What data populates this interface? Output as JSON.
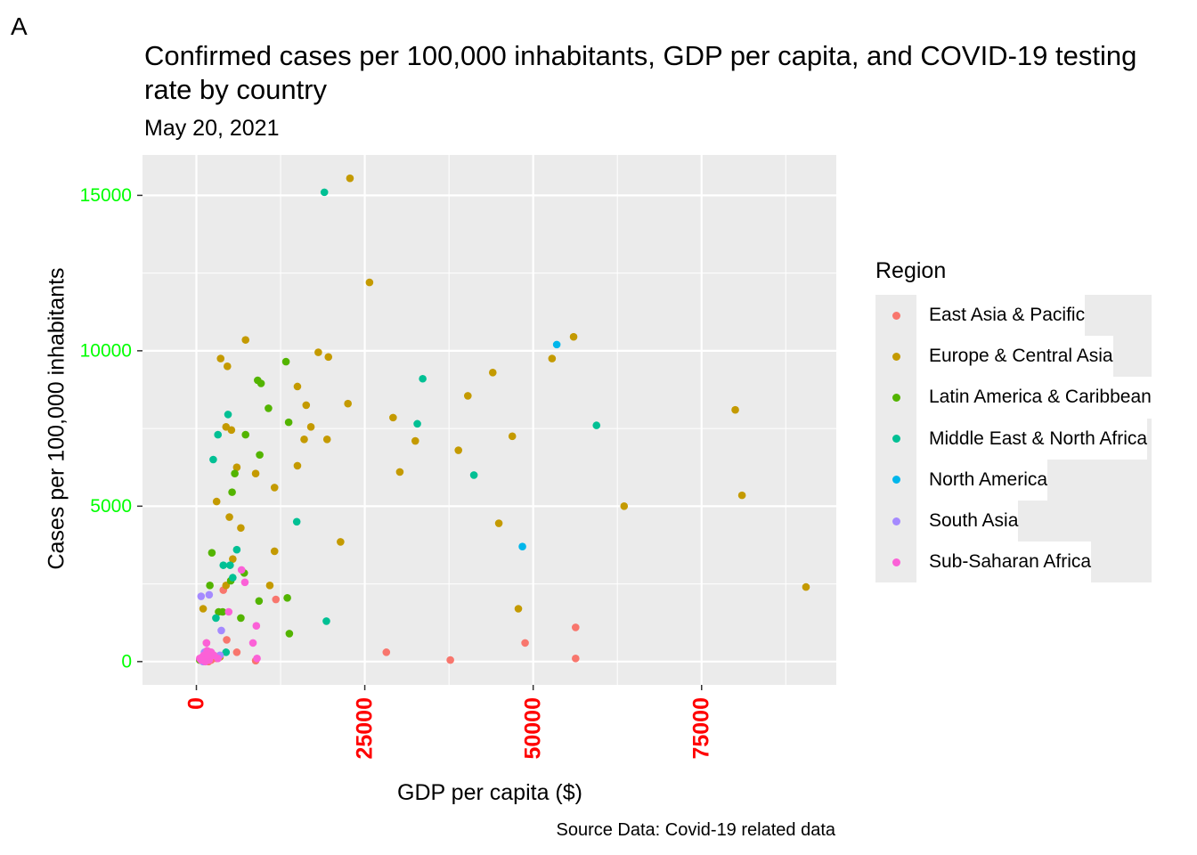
{
  "panel_letter": "A",
  "chart_data": {
    "type": "scatter",
    "title": "Confirmed cases per 100,000 inhabitants, GDP per capita, and COVID-19 testing rate by country",
    "subtitle": "May 20, 2021",
    "xlabel": "GDP per capita ($)",
    "ylabel": "Cases per 100,000 inhabitants",
    "caption": "Source Data: Covid-19 related data",
    "xlim": [
      -8000,
      95000
    ],
    "ylim": [
      -750,
      16300
    ],
    "x_ticks": [
      0,
      25000,
      50000,
      75000
    ],
    "x_tick_labels": [
      "0",
      "25000",
      "50000",
      "75000"
    ],
    "y_ticks": [
      0,
      5000,
      10000,
      15000
    ],
    "y_tick_labels": [
      "0",
      "5000",
      "10000",
      "15000"
    ],
    "x_tick_color": "#ff0000",
    "y_tick_color": "#00ff00",
    "panel_bg": "#ebebeb",
    "grid": true,
    "legend_placement": "right",
    "legend_title": "Region",
    "series": [
      {
        "name": "East Asia & Pacific",
        "color": "#F8766D",
        "points": [
          [
            11800,
            2000
          ],
          [
            28200,
            300
          ],
          [
            37700,
            50
          ],
          [
            48800,
            600
          ],
          [
            56300,
            1100
          ],
          [
            56300,
            100
          ],
          [
            8800,
            30
          ],
          [
            6000,
            300
          ],
          [
            3000,
            100
          ],
          [
            4500,
            700
          ],
          [
            1800,
            0
          ],
          [
            1000,
            100
          ],
          [
            2500,
            200
          ],
          [
            1500,
            600
          ],
          [
            4000,
            2300
          ],
          [
            2200,
            50
          ]
        ]
      },
      {
        "name": "Europe & Central Asia",
        "color": "#C49A00",
        "points": [
          [
            22800,
            15550
          ],
          [
            25700,
            12200
          ],
          [
            7300,
            10350
          ],
          [
            3600,
            9750
          ],
          [
            4600,
            9500
          ],
          [
            18100,
            9950
          ],
          [
            19600,
            9800
          ],
          [
            15000,
            8850
          ],
          [
            22500,
            8300
          ],
          [
            16300,
            8250
          ],
          [
            29200,
            7850
          ],
          [
            17000,
            7550
          ],
          [
            4400,
            7550
          ],
          [
            5200,
            7450
          ],
          [
            19400,
            7150
          ],
          [
            16000,
            7150
          ],
          [
            32500,
            7100
          ],
          [
            15000,
            6300
          ],
          [
            6000,
            6250
          ],
          [
            30200,
            6100
          ],
          [
            8800,
            6050
          ],
          [
            11600,
            5600
          ],
          [
            3000,
            5150
          ],
          [
            4900,
            4650
          ],
          [
            6600,
            4300
          ],
          [
            21400,
            3850
          ],
          [
            11600,
            3550
          ],
          [
            5400,
            3300
          ],
          [
            10900,
            2450
          ],
          [
            4400,
            2450
          ],
          [
            1000,
            1700
          ],
          [
            2000,
            300
          ],
          [
            3500,
            150
          ],
          [
            44000,
            9300
          ],
          [
            56000,
            10450
          ],
          [
            52800,
            9750
          ],
          [
            40300,
            8550
          ],
          [
            46900,
            7250
          ],
          [
            38900,
            6800
          ],
          [
            63500,
            5000
          ],
          [
            44900,
            4450
          ],
          [
            47800,
            1700
          ],
          [
            80000,
            8100
          ],
          [
            81000,
            5350
          ],
          [
            90500,
            2400
          ]
        ]
      },
      {
        "name": "Latin America & Caribbean",
        "color": "#53B400",
        "points": [
          [
            13300,
            9650
          ],
          [
            9100,
            9050
          ],
          [
            9600,
            8950
          ],
          [
            10700,
            8150
          ],
          [
            13700,
            7700
          ],
          [
            7300,
            7300
          ],
          [
            9400,
            6650
          ],
          [
            5700,
            6050
          ],
          [
            5300,
            5450
          ],
          [
            2300,
            3500
          ],
          [
            7100,
            2850
          ],
          [
            2000,
            2450
          ],
          [
            5100,
            2600
          ],
          [
            13500,
            2050
          ],
          [
            3300,
            1600
          ],
          [
            3900,
            1600
          ],
          [
            6600,
            1400
          ],
          [
            9300,
            1950
          ],
          [
            13800,
            900
          ],
          [
            500,
            50
          ]
        ]
      },
      {
        "name": "Middle East & North Africa",
        "color": "#00C094",
        "points": [
          [
            19000,
            15100
          ],
          [
            33600,
            9100
          ],
          [
            32800,
            7650
          ],
          [
            59400,
            7600
          ],
          [
            41200,
            6000
          ],
          [
            4700,
            7950
          ],
          [
            3200,
            7300
          ],
          [
            2500,
            6500
          ],
          [
            6000,
            3600
          ],
          [
            14900,
            4500
          ],
          [
            19300,
            1300
          ],
          [
            4000,
            3100
          ],
          [
            5000,
            3100
          ],
          [
            5400,
            2700
          ],
          [
            2900,
            1400
          ],
          [
            4400,
            300
          ]
        ]
      },
      {
        "name": "North America",
        "color": "#00B6EB",
        "points": [
          [
            53500,
            10200
          ],
          [
            48400,
            3700
          ]
        ]
      },
      {
        "name": "South Asia",
        "color": "#A58AFF",
        "points": [
          [
            700,
            2100
          ],
          [
            1900,
            2150
          ],
          [
            3700,
            1000
          ],
          [
            1200,
            300
          ],
          [
            1800,
            100
          ],
          [
            3500,
            200
          ],
          [
            2200,
            250
          ],
          [
            1000,
            0
          ]
        ]
      },
      {
        "name": "Sub-Saharan Africa",
        "color": "#FB61D7",
        "points": [
          [
            6700,
            2950
          ],
          [
            7200,
            2550
          ],
          [
            4800,
            1600
          ],
          [
            8900,
            1150
          ],
          [
            8400,
            600
          ],
          [
            9000,
            100
          ],
          [
            1500,
            600
          ],
          [
            2200,
            300
          ],
          [
            500,
            100
          ],
          [
            1100,
            200
          ],
          [
            1600,
            350
          ],
          [
            700,
            50
          ],
          [
            1300,
            0
          ],
          [
            2600,
            200
          ],
          [
            900,
            150
          ],
          [
            1900,
            50
          ],
          [
            3200,
            100
          ],
          [
            1700,
            200
          ]
        ]
      }
    ]
  }
}
